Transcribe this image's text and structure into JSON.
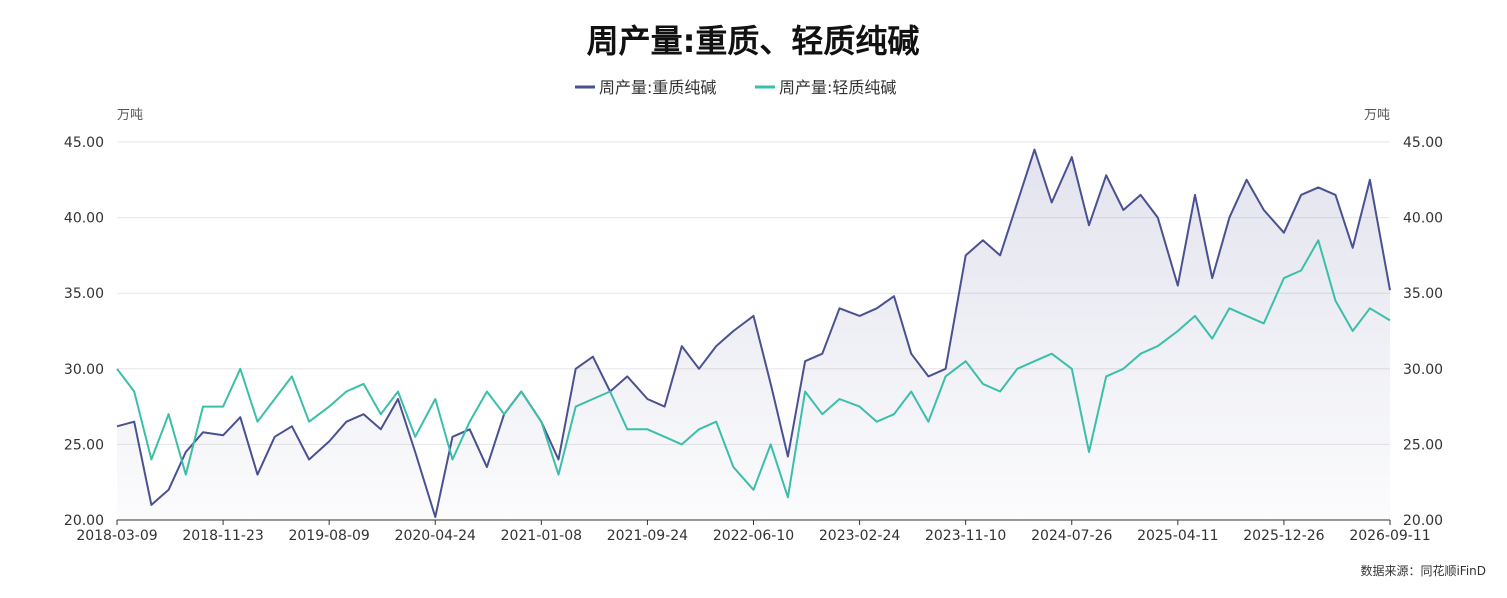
{
  "chart_data": {
    "type": "line",
    "title": "周产量:重质、轻质纯碱",
    "source": "数据来源：同花顺iFinD",
    "y_unit_left": "万吨",
    "y_unit_right": "万吨",
    "ylim": [
      20,
      45
    ],
    "yticks": [
      "20.00",
      "25.00",
      "30.00",
      "35.00",
      "40.00",
      "45.00"
    ],
    "xticks": [
      "2018-03-09",
      "2018-11-23",
      "2019-08-09",
      "2020-04-24",
      "2021-01-08",
      "2021-09-24",
      "2022-06-10",
      "2023-02-24",
      "2023-11-10",
      "2024-07-26",
      "2025-04-11",
      "2025-12-26",
      "2026-09-11"
    ],
    "x_start": "2018-03-09",
    "x_end": "2026-09-11",
    "grid": "horizontal",
    "legend_position": "top-center",
    "series": [
      {
        "name": "周产量:重质纯碱",
        "color": "#4a5190",
        "area": true,
        "x": [
          "2018-03-09",
          "2018-04-20",
          "2018-06-01",
          "2018-07-13",
          "2018-08-24",
          "2018-10-05",
          "2018-11-23",
          "2019-01-04",
          "2019-02-15",
          "2019-03-29",
          "2019-05-10",
          "2019-06-21",
          "2019-08-09",
          "2019-09-20",
          "2019-11-01",
          "2019-12-13",
          "2020-01-24",
          "2020-03-06",
          "2020-04-24",
          "2020-06-05",
          "2020-07-17",
          "2020-08-28",
          "2020-10-09",
          "2020-11-20",
          "2021-01-08",
          "2021-02-19",
          "2021-04-02",
          "2021-05-14",
          "2021-06-25",
          "2021-08-06",
          "2021-09-24",
          "2021-11-05",
          "2021-12-17",
          "2022-01-28",
          "2022-03-11",
          "2022-04-22",
          "2022-06-10",
          "2022-07-22",
          "2022-09-02",
          "2022-10-14",
          "2022-11-25",
          "2023-01-06",
          "2023-02-24",
          "2023-04-07",
          "2023-05-19",
          "2023-06-30",
          "2023-08-11",
          "2023-09-22",
          "2023-11-10",
          "2023-12-22",
          "2024-02-02",
          "2024-03-15",
          "2024-04-26",
          "2024-06-07",
          "2024-07-26",
          "2024-09-06",
          "2024-10-18",
          "2024-11-29",
          "2025-01-10",
          "2025-02-21",
          "2025-04-11",
          "2025-05-23",
          "2025-07-04",
          "2025-08-15",
          "2025-09-26",
          "2025-11-07",
          "2025-12-26",
          "2026-02-06",
          "2026-03-20",
          "2026-05-01",
          "2026-06-12",
          "2026-07-24",
          "2026-09-11"
        ],
        "values": [
          26.2,
          26.5,
          21.0,
          22.0,
          24.5,
          25.8,
          25.6,
          26.8,
          23.0,
          25.5,
          26.2,
          24.0,
          25.2,
          26.5,
          27.0,
          26.0,
          28.0,
          24.5,
          20.2,
          25.5,
          26.0,
          23.5,
          27.0,
          28.5,
          26.5,
          24.0,
          30.0,
          30.8,
          28.5,
          29.5,
          28.0,
          27.5,
          31.5,
          30.0,
          31.5,
          32.5,
          33.5,
          29.0,
          24.2,
          30.5,
          31.0,
          34.0,
          33.5,
          34.0,
          34.8,
          31.0,
          29.5,
          30.0,
          37.5,
          38.5,
          37.5,
          41.0,
          44.5,
          41.0,
          44.0,
          39.5,
          42.8,
          40.5,
          41.5,
          40.0,
          35.5,
          41.5,
          36.0,
          40.0,
          42.5,
          40.5,
          39.0,
          41.5,
          42.0,
          41.5,
          38.0,
          42.5,
          35.2
        ]
      },
      {
        "name": "周产量:轻质纯碱",
        "color": "#3bbfa9",
        "area": false,
        "x": [
          "2018-03-09",
          "2018-04-20",
          "2018-06-01",
          "2018-07-13",
          "2018-08-24",
          "2018-10-05",
          "2018-11-23",
          "2019-01-04",
          "2019-02-15",
          "2019-03-29",
          "2019-05-10",
          "2019-06-21",
          "2019-08-09",
          "2019-09-20",
          "2019-11-01",
          "2019-12-13",
          "2020-01-24",
          "2020-03-06",
          "2020-04-24",
          "2020-06-05",
          "2020-07-17",
          "2020-08-28",
          "2020-10-09",
          "2020-11-20",
          "2021-01-08",
          "2021-02-19",
          "2021-04-02",
          "2021-05-14",
          "2021-06-25",
          "2021-08-06",
          "2021-09-24",
          "2021-11-05",
          "2021-12-17",
          "2022-01-28",
          "2022-03-11",
          "2022-04-22",
          "2022-06-10",
          "2022-07-22",
          "2022-09-02",
          "2022-10-14",
          "2022-11-25",
          "2023-01-06",
          "2023-02-24",
          "2023-04-07",
          "2023-05-19",
          "2023-06-30",
          "2023-08-11",
          "2023-09-22",
          "2023-11-10",
          "2023-12-22",
          "2024-02-02",
          "2024-03-15",
          "2024-04-26",
          "2024-06-07",
          "2024-07-26",
          "2024-09-06",
          "2024-10-18",
          "2024-11-29",
          "2025-01-10",
          "2025-02-21",
          "2025-04-11",
          "2025-05-23",
          "2025-07-04",
          "2025-08-15",
          "2025-09-26",
          "2025-11-07",
          "2025-12-26",
          "2026-02-06",
          "2026-03-20",
          "2026-05-01",
          "2026-06-12",
          "2026-07-24",
          "2026-09-11"
        ],
        "values": [
          30.0,
          28.5,
          24.0,
          27.0,
          23.0,
          27.5,
          27.5,
          30.0,
          26.5,
          28.0,
          29.5,
          26.5,
          27.5,
          28.5,
          29.0,
          27.0,
          28.5,
          25.5,
          28.0,
          24.0,
          26.5,
          28.5,
          27.0,
          28.5,
          26.5,
          23.0,
          27.5,
          28.0,
          28.5,
          26.0,
          26.0,
          25.5,
          25.0,
          26.0,
          26.5,
          23.5,
          22.0,
          25.0,
          21.5,
          28.5,
          27.0,
          28.0,
          27.5,
          26.5,
          27.0,
          28.5,
          26.5,
          29.5,
          30.5,
          29.0,
          28.5,
          30.0,
          30.5,
          31.0,
          30.0,
          24.5,
          29.5,
          30.0,
          31.0,
          31.5,
          32.5,
          33.5,
          32.0,
          34.0,
          33.5,
          33.0,
          36.0,
          36.5,
          38.5,
          34.5,
          32.5,
          34.0,
          33.2
        ]
      }
    ]
  }
}
